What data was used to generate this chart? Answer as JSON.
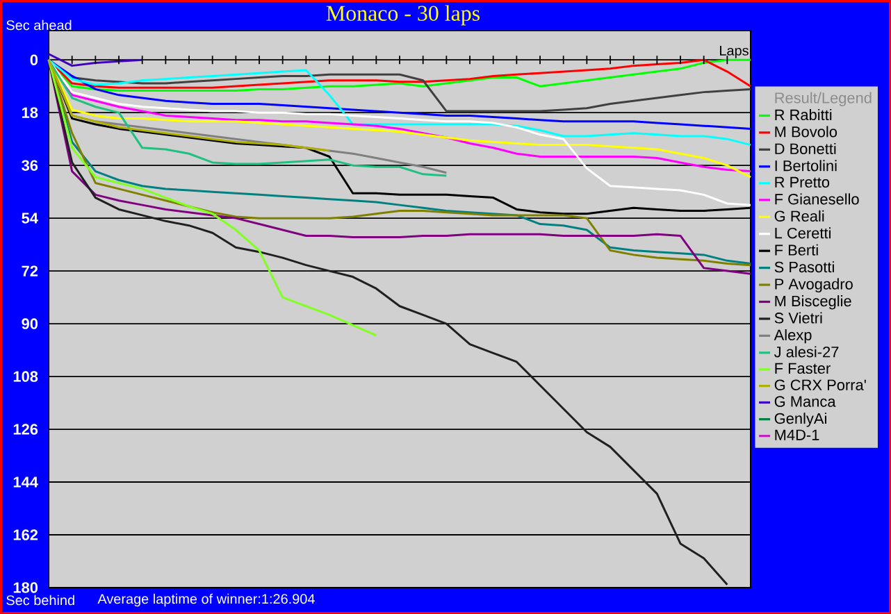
{
  "chart_data": {
    "type": "line",
    "title": "Monaco - 30 laps",
    "xlabel": "Laps",
    "ylabel": "Sec ahead",
    "legend_title": "Result/Legend",
    "annotations": [
      "Sec behind",
      "Average laptime of winner:1:26.904"
    ],
    "categories": [
      null,
      null,
      null,
      null,
      null,
      null,
      null,
      null,
      null,
      null,
      null,
      null,
      null,
      null,
      null,
      null,
      null,
      null,
      null,
      null,
      null,
      null,
      null,
      null,
      null,
      null,
      null,
      null,
      null,
      null,
      null
    ],
    "ylim": [
      180,
      -10
    ],
    "yticks": [
      0,
      18,
      36,
      54,
      72,
      90,
      108,
      126,
      144,
      162,
      180
    ],
    "grid": "y",
    "legend": "right",
    "tick_labels": "y",
    "line_style": "solid",
    "series": [
      {
        "name": "R Rabitti",
        "color": "#00ff00",
        "values": [
          0,
          9,
          10,
          10.5,
          10.5,
          10.5,
          10.5,
          10.5,
          10.5,
          10,
          10,
          9.5,
          9,
          9,
          8.5,
          8,
          9,
          8,
          7,
          6,
          6,
          9,
          8,
          7,
          6,
          5,
          4,
          3,
          1,
          0,
          0
        ]
      },
      {
        "name": "M Bovolo",
        "color": "#ff0000",
        "values": [
          0,
          8,
          9,
          9.5,
          9.5,
          9.5,
          9.5,
          9.5,
          9,
          8.5,
          8,
          7.5,
          7,
          7,
          7,
          7.5,
          7.5,
          7,
          6.5,
          5.5,
          5,
          4.5,
          4,
          3.5,
          3,
          2,
          1.5,
          1,
          0,
          4,
          9
        ]
      },
      {
        "name": "D Bonetti",
        "color": "#404040",
        "values": [
          0,
          6,
          7,
          7.5,
          8,
          8,
          7.5,
          7,
          6.5,
          6,
          5.5,
          5.5,
          5,
          5,
          5,
          5,
          7,
          17.5,
          17.5,
          17.5,
          17.5,
          17.5,
          17,
          16.5,
          15,
          14,
          13,
          12,
          11,
          10.5,
          10
        ]
      },
      {
        "name": "I Bertolini",
        "color": "#0000ff",
        "values": [
          0,
          5.5,
          10,
          12,
          13,
          14,
          14.5,
          15,
          15,
          15,
          15.5,
          16,
          16.5,
          17,
          17.5,
          18,
          18.5,
          19,
          19,
          19.5,
          20,
          20.5,
          21,
          21,
          21,
          21,
          21.5,
          22,
          22.5,
          23,
          23.5
        ]
      },
      {
        "name": "R Pretto",
        "color": "#00ffff",
        "values": [
          0,
          6.5,
          8.5,
          8,
          7,
          6.5,
          6,
          5.5,
          5,
          4.5,
          4,
          3.5,
          12,
          22,
          22,
          22,
          22,
          22,
          22,
          22,
          22.5,
          24,
          26,
          26,
          25.5,
          25,
          25.5,
          26,
          26,
          27,
          29
        ]
      },
      {
        "name": "F Gianesello",
        "color": "#ff00ff",
        "values": [
          0,
          12,
          14,
          16,
          17.5,
          19,
          19.5,
          20,
          20.5,
          20.5,
          21,
          21,
          21.5,
          22,
          22.5,
          23.5,
          25,
          26.5,
          28.5,
          30,
          32,
          33,
          33,
          33,
          33,
          33,
          33.5,
          35,
          36.5,
          37.5,
          38
        ]
      },
      {
        "name": "G Reali",
        "color": "#ffff00",
        "values": [
          0,
          17,
          19,
          20,
          20,
          20.5,
          21,
          21,
          21,
          21.5,
          22,
          22.5,
          23,
          23.5,
          24,
          24.5,
          25.5,
          26.5,
          27.5,
          28,
          28.5,
          29,
          29,
          29,
          29.5,
          30,
          30.5,
          32,
          33.5,
          36,
          40
        ]
      },
      {
        "name": "L Ceretti",
        "color": "#ffffff",
        "values": [
          0,
          11,
          13,
          15,
          16,
          16.5,
          17,
          17.5,
          17.5,
          18,
          18,
          18.5,
          18.5,
          19,
          19.5,
          20,
          20.5,
          21,
          21,
          21.5,
          23,
          25.5,
          27,
          37,
          43,
          43.5,
          44,
          44.5,
          46,
          49,
          49.5
        ]
      },
      {
        "name": "F Berti",
        "color": "#000000",
        "values": [
          0,
          20,
          22,
          23.5,
          24.5,
          25.5,
          26.5,
          27.5,
          28.5,
          29,
          29.5,
          30,
          33,
          45.5,
          45.5,
          46,
          46,
          46,
          46.5,
          47,
          51,
          52,
          52.5,
          52.5,
          51.5,
          50.5,
          51,
          51.5,
          51.5,
          51,
          50.5
        ]
      },
      {
        "name": "S Pasotti",
        "color": "#008080",
        "values": [
          0,
          28,
          38,
          41,
          43,
          44,
          44.5,
          45,
          45.5,
          46,
          46.5,
          47,
          47.5,
          48,
          48.5,
          49.5,
          50.5,
          51.5,
          52,
          52.5,
          53,
          56,
          56.5,
          58,
          64,
          65,
          65.5,
          66,
          66.5,
          68.5,
          69.5
        ]
      },
      {
        "name": "P Avogadro",
        "color": "#808000",
        "values": [
          0,
          25,
          42,
          44,
          46,
          48,
          50,
          52,
          53.5,
          54,
          54,
          54,
          54,
          53.5,
          52.5,
          51.5,
          51.5,
          52,
          52.5,
          53,
          53,
          53,
          53,
          54,
          65,
          66.5,
          67.5,
          68,
          68.5,
          69.5,
          70
        ]
      },
      {
        "name": "M Bisceglie",
        "color": "#800080",
        "values": [
          0,
          38,
          46,
          48,
          49.5,
          51,
          52,
          53,
          54,
          56,
          58,
          60,
          60,
          60.5,
          60.5,
          60.5,
          60,
          60,
          59.5,
          59.5,
          59.5,
          59.5,
          60,
          60,
          60,
          60,
          59.5,
          60,
          71,
          72,
          73
        ]
      },
      {
        "name": "S Vietri",
        "color": "#202020",
        "values": [
          0,
          35,
          47,
          51,
          53,
          55,
          56.5,
          59,
          64,
          65.5,
          67.5,
          70,
          72,
          74,
          78,
          84,
          87,
          90,
          97,
          100,
          103,
          111,
          119,
          127,
          132,
          140,
          148,
          165,
          170,
          179,
          null
        ]
      },
      {
        "name": "Alexp",
        "color": "#808080",
        "values": [
          0,
          19,
          21,
          22,
          23,
          24,
          25,
          26,
          27,
          28,
          29,
          30,
          31,
          32,
          33.5,
          35,
          36.5,
          38.5,
          null,
          null,
          null,
          null,
          null,
          null,
          null,
          null,
          null,
          null,
          null,
          null,
          null
        ]
      },
      {
        "name": "J alesi-27",
        "color": "#20c080",
        "values": [
          0,
          13,
          16,
          18,
          30,
          30.5,
          32,
          35,
          35.5,
          35.5,
          35,
          34.5,
          34,
          36,
          36.5,
          36.5,
          39,
          39.5,
          null,
          null,
          null,
          null,
          null,
          null,
          null,
          null,
          null,
          null,
          null,
          null,
          null
        ]
      },
      {
        "name": "F Faster",
        "color": "#80ff20",
        "values": [
          0,
          30,
          40,
          42,
          44,
          47,
          50,
          52.5,
          58,
          65,
          81,
          84,
          87,
          90.5,
          94,
          null,
          null,
          null,
          null,
          null,
          null,
          null,
          null,
          null,
          null,
          null,
          null,
          null,
          null,
          null,
          null
        ]
      },
      {
        "name": "G CRX Porra'",
        "color": "#b0b000",
        "values": [
          0,
          19,
          21,
          23,
          24,
          25,
          26,
          27,
          28,
          28.5,
          29,
          30,
          31,
          null,
          null,
          null,
          null,
          null,
          null,
          null,
          null,
          null,
          null,
          null,
          null,
          null,
          null,
          null,
          null,
          null,
          null
        ]
      },
      {
        "name": "G Manca",
        "color": "#4000c0",
        "values": [
          -2,
          2,
          1,
          0.5,
          0,
          null,
          null,
          null,
          null,
          null,
          null,
          null,
          null,
          null,
          null,
          null,
          null,
          null,
          null,
          null,
          null,
          null,
          null,
          null,
          null,
          null,
          null,
          null,
          null,
          null,
          null
        ]
      },
      {
        "name": "GenlyAi",
        "color": "#008040",
        "values": [
          null,
          null,
          null,
          null,
          null,
          null,
          null,
          null,
          null,
          null,
          null,
          null,
          null,
          null,
          null,
          null,
          null,
          null,
          null,
          null,
          null,
          null,
          null,
          null,
          null,
          null,
          null,
          null,
          null,
          null,
          null
        ]
      },
      {
        "name": "M4D-1",
        "color": "#c020c0",
        "values": [
          null,
          null,
          null,
          null,
          null,
          null,
          null,
          null,
          null,
          null,
          null,
          null,
          null,
          null,
          null,
          null,
          null,
          null,
          null,
          null,
          null,
          null,
          null,
          null,
          null,
          null,
          null,
          null,
          null,
          null,
          null
        ]
      }
    ]
  }
}
